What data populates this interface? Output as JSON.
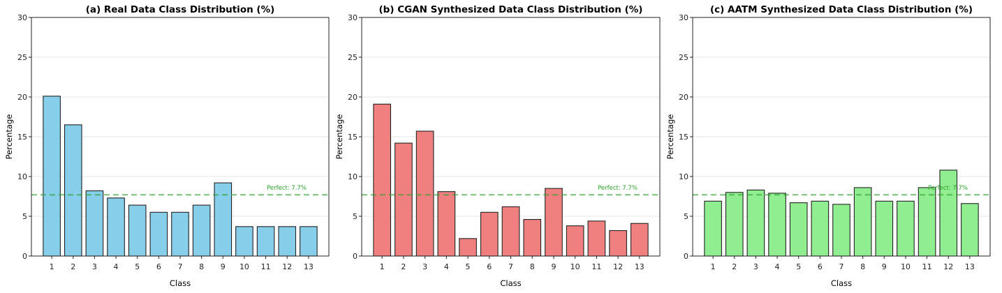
{
  "chart_data": [
    {
      "type": "bar",
      "title": "(a) Real Data Class Distribution (%)",
      "xlabel": "Class",
      "ylabel": "Percentage",
      "categories": [
        "1",
        "2",
        "3",
        "4",
        "5",
        "6",
        "7",
        "8",
        "9",
        "10",
        "11",
        "12",
        "13"
      ],
      "values": [
        20.1,
        16.5,
        8.2,
        7.3,
        6.4,
        5.5,
        5.5,
        6.4,
        9.2,
        3.7,
        3.7,
        3.7,
        3.7
      ],
      "ylim": [
        0,
        30
      ],
      "yticks": [
        "0",
        "5",
        "10",
        "15",
        "20",
        "25",
        "30"
      ],
      "reference_line": {
        "value": 7.7,
        "label": "Perfect: 7.7%",
        "color": "#2ca02c"
      },
      "bar_color": "#87ceeb",
      "grid": true
    },
    {
      "type": "bar",
      "title": "(b) CGAN Synthesized Data Class Distribution (%)",
      "xlabel": "Class",
      "ylabel": "Percentage",
      "categories": [
        "1",
        "2",
        "3",
        "4",
        "5",
        "6",
        "7",
        "8",
        "9",
        "10",
        "11",
        "12",
        "13"
      ],
      "values": [
        19.1,
        14.2,
        15.7,
        8.1,
        2.2,
        5.5,
        6.2,
        4.6,
        8.5,
        3.8,
        4.4,
        3.2,
        4.1
      ],
      "ylim": [
        0,
        30
      ],
      "yticks": [
        "0",
        "5",
        "10",
        "15",
        "20",
        "25",
        "30"
      ],
      "reference_line": {
        "value": 7.7,
        "label": "Perfect: 7.7%",
        "color": "#2ca02c"
      },
      "bar_color": "#f08080",
      "grid": true
    },
    {
      "type": "bar",
      "title": "(c) AATM Synthesized Data Class Distribution (%)",
      "xlabel": "Class",
      "ylabel": "Percentage",
      "categories": [
        "1",
        "2",
        "3",
        "4",
        "5",
        "6",
        "7",
        "8",
        "9",
        "10",
        "11",
        "12",
        "13"
      ],
      "values": [
        6.9,
        8.0,
        8.3,
        7.9,
        6.7,
        6.9,
        6.5,
        8.6,
        6.9,
        6.9,
        8.6,
        10.8,
        6.6
      ],
      "ylim": [
        0,
        30
      ],
      "yticks": [
        "0",
        "5",
        "10",
        "15",
        "20",
        "25",
        "30"
      ],
      "reference_line": {
        "value": 7.7,
        "label": "Perfect: 7.7%",
        "color": "#2ca02c"
      },
      "bar_color": "#90ee90",
      "grid": true
    }
  ]
}
